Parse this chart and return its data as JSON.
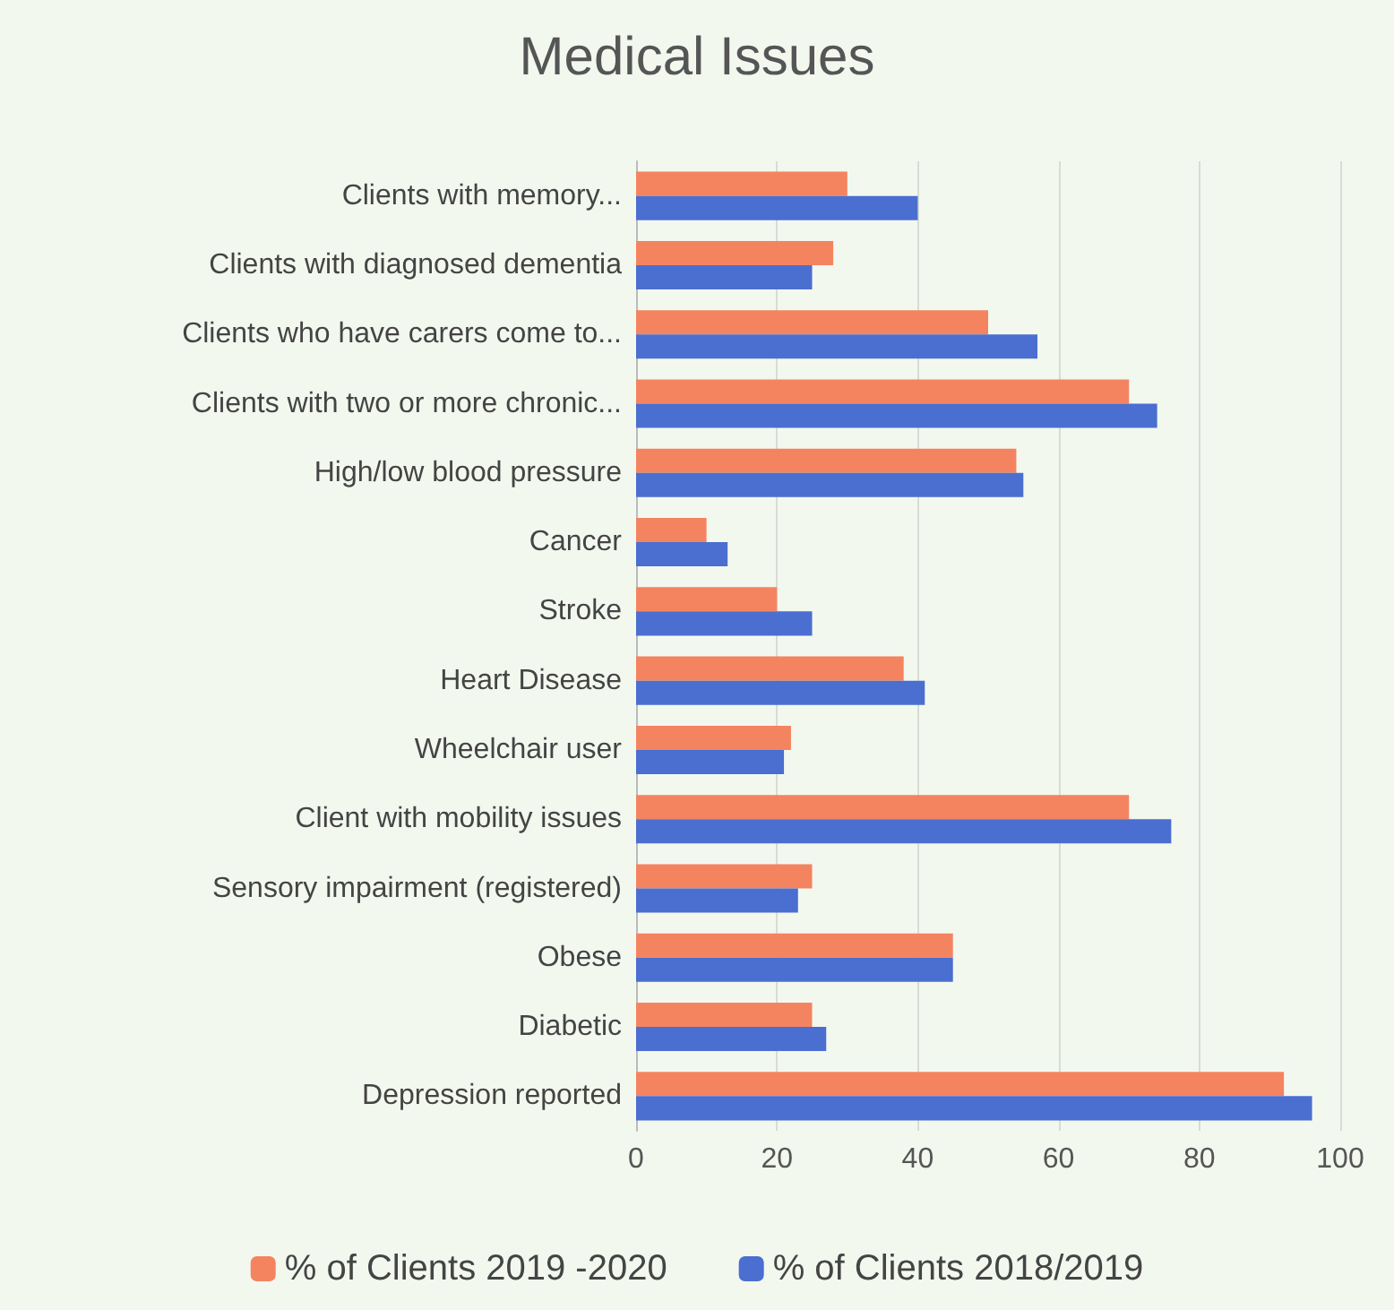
{
  "chart_data": {
    "type": "bar",
    "orientation": "horizontal",
    "title": "Medical Issues",
    "categories": [
      "Clients with memory...",
      "Clients with diagnosed dementia",
      "Clients who have carers come to...",
      "Clients with two or more chronic...",
      "High/low blood pressure",
      "Cancer",
      "Stroke",
      "Heart Disease",
      "Wheelchair user",
      "Client with mobility issues",
      "Sensory impairment (registered)",
      "Obese",
      "Diabetic",
      "Depression reported"
    ],
    "series": [
      {
        "name": "% of Clients 2019 -2020",
        "color": "#f4845f",
        "values": [
          30,
          28,
          50,
          70,
          54,
          10,
          20,
          38,
          22,
          70,
          25,
          45,
          25,
          92
        ]
      },
      {
        "name": "% of Clients 2018/2019",
        "color": "#4a6fd0",
        "values": [
          40,
          25,
          57,
          74,
          55,
          13,
          25,
          41,
          21,
          76,
          23,
          45,
          27,
          96
        ]
      }
    ],
    "xlim": [
      0,
      100
    ],
    "xticks": [
      0,
      20,
      40,
      60,
      80,
      100
    ],
    "grid": "x",
    "legend": "bottom"
  }
}
